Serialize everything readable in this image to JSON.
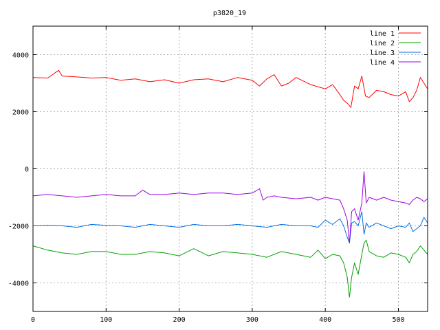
{
  "chart_data": {
    "type": "line",
    "title": "p3820_19",
    "xlabel": "",
    "ylabel": "",
    "xlim": [
      0,
      540
    ],
    "ylim": [
      -5000,
      5000
    ],
    "xticks": [
      0,
      100,
      200,
      300,
      400,
      500
    ],
    "yticks": [
      -4000,
      -2000,
      0,
      2000,
      4000
    ],
    "grid": true,
    "legend_position": "top-right",
    "series": [
      {
        "name": "line 1",
        "color": "#ff0000",
        "x": [
          0,
          20,
          35,
          40,
          60,
          80,
          100,
          120,
          140,
          160,
          180,
          200,
          220,
          240,
          260,
          280,
          300,
          310,
          320,
          330,
          340,
          350,
          360,
          380,
          400,
          410,
          420,
          425,
          430,
          435,
          440,
          445,
          450,
          455,
          460,
          470,
          480,
          490,
          500,
          510,
          515,
          520,
          525,
          530,
          535,
          540
        ],
        "values": [
          3200,
          3180,
          3450,
          3250,
          3220,
          3180,
          3200,
          3100,
          3150,
          3050,
          3120,
          3000,
          3120,
          3150,
          3050,
          3200,
          3100,
          2900,
          3150,
          3300,
          2900,
          3000,
          3200,
          2950,
          2800,
          2950,
          2600,
          2400,
          2300,
          2150,
          2900,
          2800,
          3250,
          2550,
          2500,
          2750,
          2700,
          2600,
          2550,
          2700,
          2350,
          2500,
          2750,
          3200,
          3000,
          2800
        ]
      },
      {
        "name": "line 2",
        "color": "#00a000",
        "x": [
          0,
          20,
          40,
          60,
          80,
          100,
          120,
          140,
          160,
          180,
          200,
          220,
          240,
          260,
          280,
          300,
          320,
          340,
          360,
          380,
          390,
          400,
          410,
          420,
          425,
          430,
          433,
          436,
          440,
          445,
          450,
          453,
          456,
          460,
          470,
          480,
          490,
          500,
          510,
          515,
          520,
          525,
          530,
          535,
          540
        ],
        "values": [
          -2700,
          -2850,
          -2950,
          -3000,
          -2900,
          -2900,
          -3000,
          -3000,
          -2900,
          -2950,
          -3050,
          -2800,
          -3050,
          -2900,
          -2950,
          -3000,
          -3100,
          -2900,
          -3000,
          -3100,
          -2850,
          -3150,
          -3000,
          -3050,
          -3300,
          -3800,
          -4500,
          -3800,
          -3300,
          -3700,
          -3000,
          -2600,
          -2500,
          -2900,
          -3050,
          -3100,
          -2950,
          -3000,
          -3100,
          -3300,
          -3000,
          -2900,
          -2700,
          -2850,
          -3000
        ]
      },
      {
        "name": "line 3",
        "color": "#0070e0",
        "x": [
          0,
          20,
          40,
          60,
          80,
          100,
          120,
          140,
          160,
          180,
          200,
          220,
          240,
          260,
          280,
          300,
          320,
          340,
          360,
          380,
          390,
          400,
          410,
          420,
          425,
          430,
          433,
          436,
          440,
          445,
          450,
          453,
          456,
          460,
          470,
          480,
          490,
          500,
          510,
          515,
          520,
          525,
          530,
          535,
          540
        ],
        "values": [
          -2000,
          -1980,
          -2000,
          -2050,
          -1950,
          -1980,
          -2000,
          -2050,
          -1950,
          -2000,
          -2050,
          -1950,
          -2000,
          -2000,
          -1950,
          -2000,
          -2050,
          -1950,
          -2000,
          -2000,
          -2050,
          -1800,
          -1950,
          -1750,
          -2000,
          -2400,
          -2600,
          -1900,
          -1850,
          -2000,
          -1500,
          -2300,
          -1900,
          -2050,
          -1900,
          -2000,
          -2100,
          -2000,
          -2050,
          -1900,
          -2200,
          -2100,
          -2000,
          -1700,
          -1900
        ]
      },
      {
        "name": "line 4",
        "color": "#a000e0",
        "x": [
          0,
          20,
          40,
          60,
          80,
          100,
          120,
          140,
          150,
          160,
          180,
          200,
          220,
          240,
          260,
          280,
          300,
          310,
          315,
          320,
          330,
          340,
          360,
          380,
          390,
          400,
          410,
          420,
          425,
          430,
          433,
          436,
          440,
          445,
          450,
          453,
          456,
          460,
          470,
          480,
          490,
          500,
          510,
          515,
          520,
          525,
          530,
          535,
          540
        ],
        "values": [
          -950,
          -900,
          -950,
          -1000,
          -950,
          -900,
          -950,
          -950,
          -750,
          -900,
          -900,
          -850,
          -900,
          -850,
          -850,
          -900,
          -850,
          -700,
          -1100,
          -1000,
          -950,
          -1000,
          -1050,
          -1000,
          -1100,
          -1000,
          -1050,
          -1100,
          -1400,
          -1800,
          -2600,
          -1500,
          -1400,
          -1800,
          -1200,
          -100,
          -1200,
          -1000,
          -1100,
          -1000,
          -1100,
          -1150,
          -1200,
          -1250,
          -1100,
          -1000,
          -1050,
          -1150,
          -1050
        ]
      }
    ]
  }
}
